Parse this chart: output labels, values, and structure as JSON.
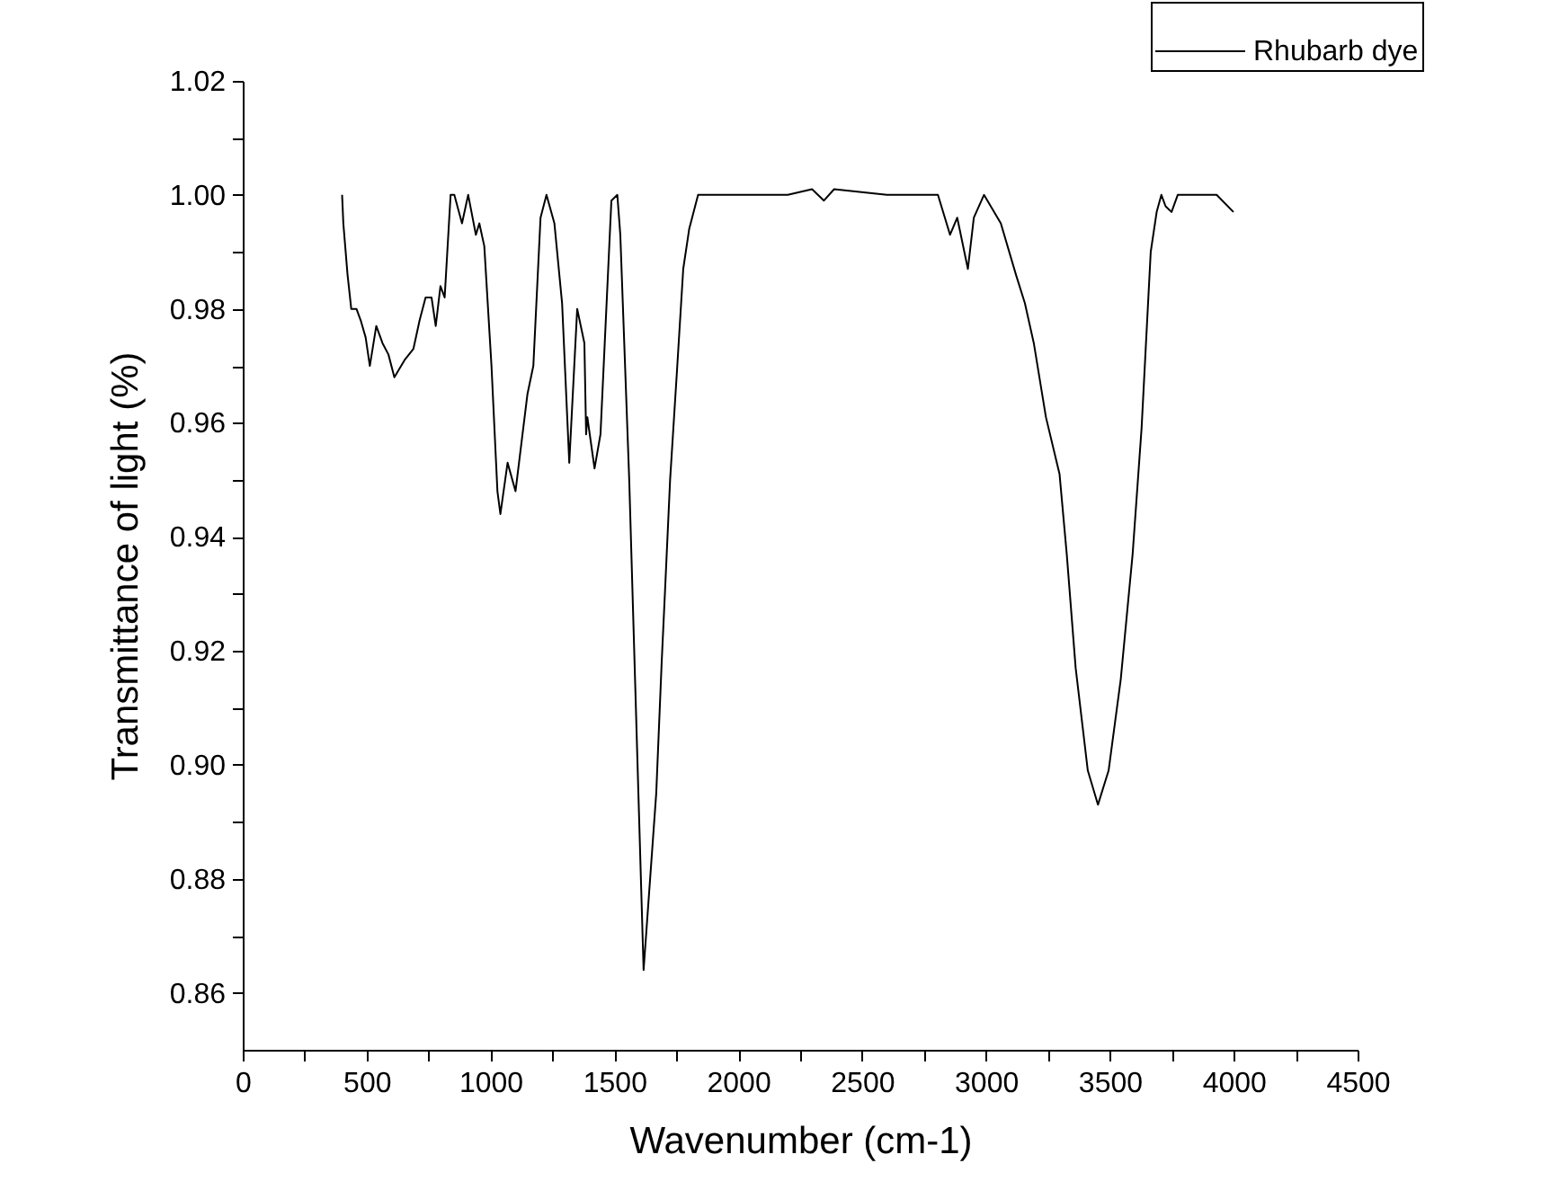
{
  "chart_data": {
    "type": "line",
    "xlabel": "Wavenumber (cm-1)",
    "ylabel": "Transmittance of light (%)",
    "xlim": [
      0,
      4500
    ],
    "ylim": [
      0.85,
      1.02
    ],
    "xticks": [
      0,
      {
        "value": 250,
        "label": null
      },
      500,
      {
        "value": 750,
        "label": null
      },
      1000,
      {
        "value": 1250,
        "label": null
      },
      1500,
      {
        "value": 1750,
        "label": null
      },
      2000,
      {
        "value": 2250,
        "label": null
      },
      2500,
      {
        "value": 2750,
        "label": null
      },
      3000,
      {
        "value": 3250,
        "label": null
      },
      3500,
      {
        "value": 3750,
        "label": null
      },
      4000,
      {
        "value": 4250,
        "label": null
      },
      4500
    ],
    "yticks": [
      0.86,
      {
        "value": 0.87,
        "label": null
      },
      0.88,
      {
        "value": 0.89,
        "label": null
      },
      {
        "value": 0.9,
        "label": "0.90"
      },
      {
        "value": 0.91,
        "label": null
      },
      0.92,
      {
        "value": 0.93,
        "label": null
      },
      0.94,
      {
        "value": 0.95,
        "label": null
      },
      0.96,
      {
        "value": 0.97,
        "label": null
      },
      0.98,
      {
        "value": 0.99,
        "label": null
      },
      {
        "value": 1,
        "label": "1.00"
      },
      {
        "value": 1.01,
        "label": null
      },
      1.02
    ],
    "grid": false,
    "legend": "top right",
    "line_style": "solid",
    "marker": "none",
    "series": [
      {
        "name": "Rhubarb dye",
        "color": "#000000",
        "x": [
          401,
          406,
          423,
          438,
          459,
          476,
          496,
          513,
          539,
          564,
          588,
          612,
          653,
          689,
          714,
          738,
          762,
          779,
          798,
          815,
          839,
          854,
          885,
          910,
          941,
          955,
          975,
          1004,
          1028,
          1040,
          1069,
          1101,
          1149,
          1173,
          1202,
          1226,
          1258,
          1289,
          1318,
          1350,
          1379,
          1386,
          1391,
          1420,
          1444,
          1488,
          1512,
          1524,
          1560,
          1597,
          1618,
          1669,
          1691,
          1705,
          1725,
          1754,
          1778,
          1802,
          1838,
          2000,
          2200,
          2298,
          2346,
          2387,
          2600,
          2806,
          2855,
          2884,
          2927,
          2951,
          2992,
          3060,
          3121,
          3157,
          3193,
          3242,
          3297,
          3326,
          3362,
          3411,
          3452,
          3495,
          3544,
          3592,
          3628,
          3665,
          3689,
          3708,
          3725,
          3749,
          3774,
          3810,
          3858,
          3931,
          3999
        ],
        "values": [
          1.0,
          0.995,
          0.986,
          0.98,
          0.98,
          0.978,
          0.975,
          0.97,
          0.977,
          0.974,
          0.972,
          0.968,
          0.971,
          0.973,
          0.978,
          0.982,
          0.982,
          0.977,
          0.984,
          0.982,
          1.0,
          1.0,
          0.995,
          1.0,
          0.993,
          0.995,
          0.991,
          0.97,
          0.948,
          0.944,
          0.953,
          0.948,
          0.965,
          0.97,
          0.996,
          1.0,
          0.995,
          0.981,
          0.953,
          0.98,
          0.974,
          0.958,
          0.961,
          0.952,
          0.958,
          0.999,
          1.0,
          0.993,
          0.95,
          0.895,
          0.864,
          0.895,
          0.918,
          0.931,
          0.95,
          0.97,
          0.987,
          0.994,
          1.0,
          1.0,
          1.0,
          1.001,
          0.999,
          1.001,
          1.0,
          1.0,
          0.993,
          0.996,
          0.987,
          0.996,
          1.0,
          0.995,
          0.986,
          0.981,
          0.974,
          0.961,
          0.951,
          0.937,
          0.917,
          0.899,
          0.893,
          0.899,
          0.915,
          0.937,
          0.959,
          0.99,
          0.997,
          1.0,
          0.998,
          0.997,
          1.0,
          1.0,
          1.0,
          1.0,
          0.997
        ]
      }
    ]
  }
}
